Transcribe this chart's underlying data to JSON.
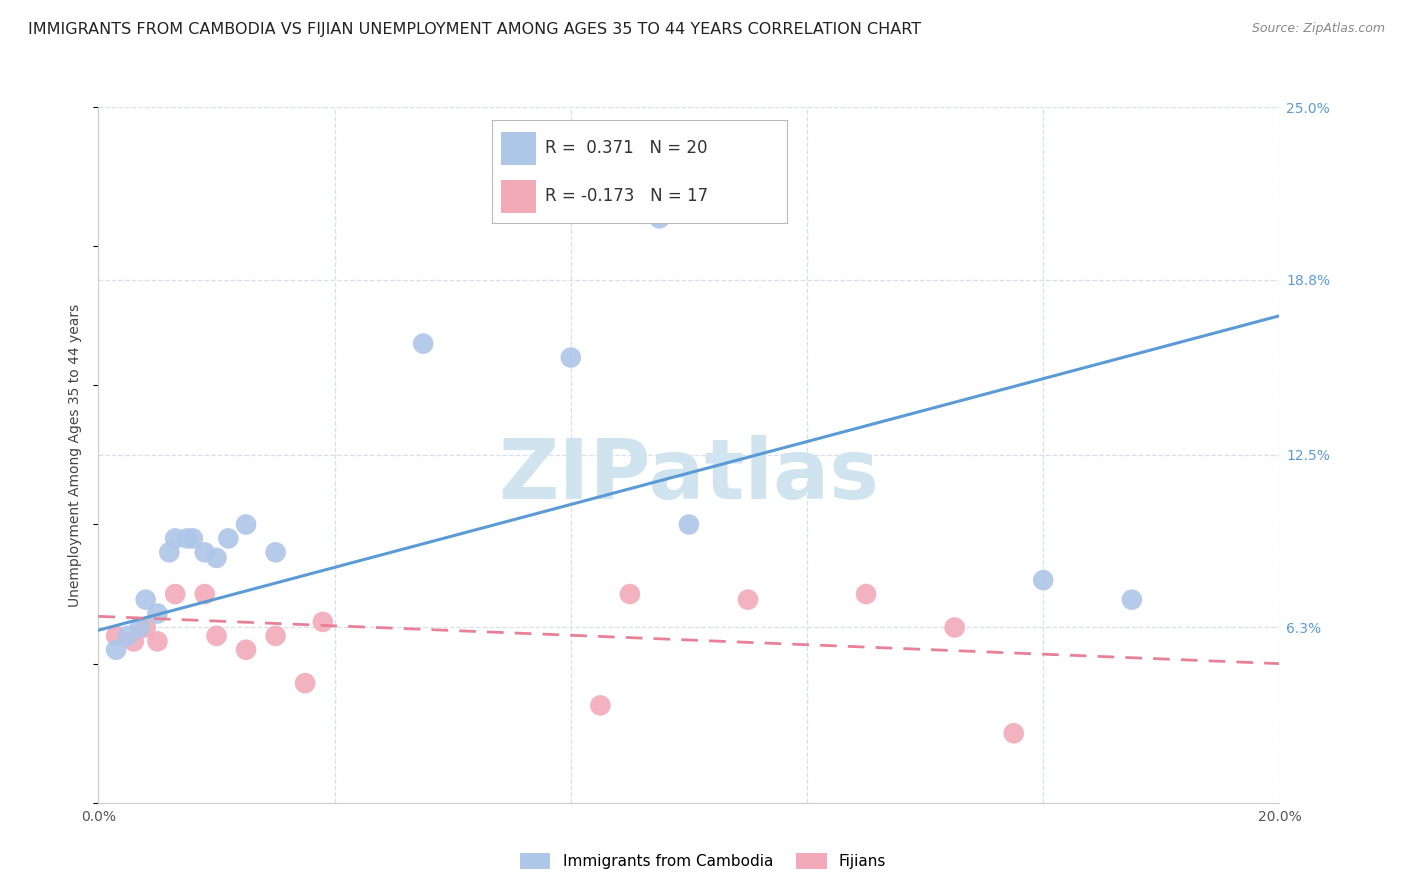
{
  "title": "IMMIGRANTS FROM CAMBODIA VS FIJIAN UNEMPLOYMENT AMONG AGES 35 TO 44 YEARS CORRELATION CHART",
  "source": "Source: ZipAtlas.com",
  "ylabel": "Unemployment Among Ages 35 to 44 years",
  "xlim": [
    0.0,
    0.2
  ],
  "ylim": [
    0.0,
    0.25
  ],
  "xtick_positions": [
    0.0,
    0.04,
    0.08,
    0.12,
    0.16,
    0.2
  ],
  "xtick_labels": [
    "0.0%",
    "",
    "",
    "",
    "",
    "20.0%"
  ],
  "ytick_vals_right": [
    0.25,
    0.188,
    0.125,
    0.063,
    0.0
  ],
  "ytick_labels_right": [
    "25.0%",
    "18.8%",
    "12.5%",
    "6.3%",
    ""
  ],
  "blue_scatter_x": [
    0.003,
    0.005,
    0.007,
    0.008,
    0.01,
    0.012,
    0.013,
    0.015,
    0.016,
    0.018,
    0.02,
    0.022,
    0.025,
    0.03,
    0.055,
    0.08,
    0.095,
    0.1,
    0.16,
    0.175
  ],
  "blue_scatter_y": [
    0.055,
    0.06,
    0.063,
    0.073,
    0.068,
    0.09,
    0.095,
    0.095,
    0.095,
    0.09,
    0.088,
    0.095,
    0.1,
    0.09,
    0.165,
    0.16,
    0.21,
    0.1,
    0.08,
    0.073
  ],
  "pink_scatter_x": [
    0.003,
    0.006,
    0.008,
    0.01,
    0.013,
    0.018,
    0.02,
    0.025,
    0.03,
    0.035,
    0.038,
    0.085,
    0.09,
    0.11,
    0.13,
    0.145,
    0.155
  ],
  "pink_scatter_y": [
    0.06,
    0.058,
    0.063,
    0.058,
    0.075,
    0.075,
    0.06,
    0.055,
    0.06,
    0.043,
    0.065,
    0.035,
    0.075,
    0.073,
    0.075,
    0.063,
    0.025
  ],
  "blue_line_x0": 0.0,
  "blue_line_y0": 0.062,
  "blue_line_x1": 0.2,
  "blue_line_y1": 0.175,
  "pink_line_x0": 0.0,
  "pink_line_y0": 0.067,
  "pink_line_x1": 0.2,
  "pink_line_y1": 0.05,
  "blue_line_color": "#5b9bd5",
  "pink_line_color": "#e88098",
  "blue_scatter_color": "#aec6e8",
  "pink_scatter_color": "#f2aab8",
  "watermark_text": "ZIPatlas",
  "watermark_color": "#d0e4f0",
  "watermark_fontsize": 60,
  "background_color": "#ffffff",
  "grid_color": "#d8dfe8",
  "title_fontsize": 11.5,
  "source_fontsize": 9,
  "axis_label_fontsize": 10,
  "tick_fontsize": 10,
  "legend_fontsize": 12,
  "legend_blue_text": "R =  0.371   N = 20",
  "legend_pink_text": "R = -0.173   N = 17",
  "bottom_legend_blue": "Immigrants from Cambodia",
  "bottom_legend_pink": "Fijians"
}
